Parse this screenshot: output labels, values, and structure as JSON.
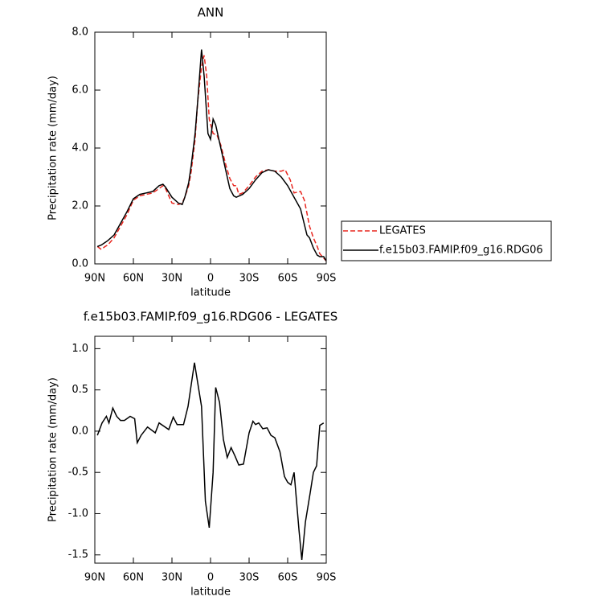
{
  "chart_data": [
    {
      "type": "line",
      "title": "ANN",
      "xlabel": "latitude",
      "ylabel": "Precipitation rate (mm/day)",
      "xlim": [
        90,
        -90
      ],
      "xticks": [
        {
          "value": 90,
          "label": "90N"
        },
        {
          "value": 60,
          "label": "60N"
        },
        {
          "value": 30,
          "label": "30N"
        },
        0,
        {
          "value": -30,
          "label": "30S"
        },
        {
          "value": -60,
          "label": "60S"
        },
        {
          "value": -90,
          "label": "90S"
        }
      ],
      "ylim": [
        0,
        8
      ],
      "yticks": [
        {
          "value": 0,
          "label": "0.0"
        },
        {
          "value": 2,
          "label": "2.0"
        },
        {
          "value": 4,
          "label": "4.0"
        },
        {
          "value": 6,
          "label": "6.0"
        },
        {
          "value": 8,
          "label": "8.0"
        }
      ],
      "legend": "right",
      "series": [
        {
          "name": "LEGATES",
          "color": "#e8261f",
          "line_style": "dashed",
          "x": [
            88,
            85,
            82,
            80,
            75,
            70,
            65,
            60,
            55,
            50,
            45,
            40,
            37,
            35,
            30,
            25,
            22,
            20,
            17,
            15,
            12,
            10,
            7,
            5,
            3,
            1,
            -2,
            -5,
            -8,
            -12,
            -15,
            -18,
            -20,
            -22,
            -25,
            -30,
            -35,
            -40,
            -45,
            -50,
            -55,
            -58,
            -62,
            -65,
            -70,
            -73,
            -77,
            -80,
            -83,
            -85,
            -88,
            -90
          ],
          "values": [
            0.6,
            0.5,
            0.6,
            0.65,
            0.9,
            1.3,
            1.7,
            2.2,
            2.35,
            2.4,
            2.45,
            2.6,
            2.7,
            2.6,
            2.1,
            2.05,
            2.1,
            2.3,
            2.7,
            3.2,
            4.3,
            5.6,
            6.8,
            7.2,
            6.5,
            5.0,
            4.5,
            4.45,
            4.1,
            3.4,
            2.95,
            2.7,
            2.7,
            2.4,
            2.45,
            2.7,
            3.0,
            3.2,
            3.25,
            3.2,
            3.2,
            3.25,
            2.9,
            2.45,
            2.5,
            2.2,
            1.3,
            0.9,
            0.6,
            0.35,
            0.2,
            0.1
          ]
        },
        {
          "name": "f.e15b03.FAMIP.f09_g16.RDG06",
          "color": "#000000",
          "line_style": "solid",
          "x": [
            88,
            85,
            80,
            75,
            70,
            65,
            60,
            55,
            50,
            45,
            40,
            37,
            35,
            30,
            25,
            22,
            20,
            17,
            15,
            12,
            10,
            7,
            5,
            2,
            0,
            -2,
            -4,
            -7,
            -10,
            -15,
            -18,
            -20,
            -25,
            -30,
            -35,
            -40,
            -45,
            -50,
            -55,
            -60,
            -65,
            -70,
            -75,
            -77,
            -80,
            -83,
            -85,
            -88,
            -90
          ],
          "values": [
            0.6,
            0.65,
            0.8,
            1.0,
            1.4,
            1.8,
            2.25,
            2.4,
            2.45,
            2.5,
            2.7,
            2.75,
            2.65,
            2.3,
            2.1,
            2.05,
            2.3,
            2.8,
            3.4,
            4.5,
            5.6,
            7.4,
            6.5,
            4.5,
            4.3,
            5.0,
            4.8,
            4.2,
            3.6,
            2.6,
            2.35,
            2.3,
            2.4,
            2.6,
            2.9,
            3.15,
            3.25,
            3.2,
            3.0,
            2.7,
            2.3,
            1.9,
            1.0,
            0.9,
            0.55,
            0.3,
            0.25,
            0.25,
            0.1
          ]
        }
      ]
    },
    {
      "type": "line",
      "title": "f.e15b03.FAMIP.f09_g16.RDG06 - LEGATES",
      "xlabel": "latitude",
      "ylabel": "Precipitation rate (mm/day)",
      "xlim": [
        90,
        -90
      ],
      "xticks": [
        {
          "value": 90,
          "label": "90N"
        },
        {
          "value": 60,
          "label": "60N"
        },
        {
          "value": 30,
          "label": "30N"
        },
        0,
        {
          "value": -30,
          "label": "30S"
        },
        {
          "value": -60,
          "label": "60S"
        },
        {
          "value": -90,
          "label": "90S"
        }
      ],
      "ylim": [
        -1.6,
        1.15
      ],
      "yticks": [
        {
          "value": -1.5,
          "label": "-1.5"
        },
        {
          "value": -1,
          "label": "-1.0"
        },
        {
          "value": -0.5,
          "label": "-0.5"
        },
        {
          "value": 0,
          "label": "0.0"
        },
        {
          "value": 0.5,
          "label": "0.5"
        },
        {
          "value": 1,
          "label": "1.0"
        }
      ],
      "color": "#000000",
      "x": [
        88,
        84.4,
        81,
        79,
        76,
        73,
        70,
        67,
        62.5,
        59,
        57,
        54,
        49,
        43,
        40,
        32.5,
        29,
        26,
        21,
        17.5,
        12.5,
        7,
        4,
        1,
        -2,
        -4,
        -7,
        -10,
        -13,
        -16,
        -19,
        -22,
        -25.6,
        -30,
        -33,
        -35,
        -37.5,
        -40.6,
        -44,
        -47,
        -50,
        -54,
        -57.5,
        -60,
        -62.5,
        -65,
        -68.8,
        -71,
        -73.8,
        -77.5,
        -80,
        -82.5,
        -85,
        -88
      ],
      "values": [
        -0.05,
        0.1,
        0.18,
        0.1,
        0.28,
        0.18,
        0.13,
        0.13,
        0.18,
        0.15,
        -0.14,
        -0.05,
        0.05,
        -0.02,
        0.1,
        0.02,
        0.17,
        0.08,
        0.08,
        0.3,
        0.83,
        0.3,
        -0.85,
        -1.17,
        -0.5,
        0.53,
        0.35,
        -0.1,
        -0.32,
        -0.2,
        -0.3,
        -0.41,
        -0.4,
        -0.02,
        0.12,
        0.08,
        0.1,
        0.03,
        0.04,
        -0.05,
        -0.08,
        -0.25,
        -0.55,
        -0.62,
        -0.65,
        -0.5,
        -1.2,
        -1.56,
        -1.1,
        -0.75,
        -0.5,
        -0.42,
        0.07,
        0.1
      ]
    }
  ]
}
